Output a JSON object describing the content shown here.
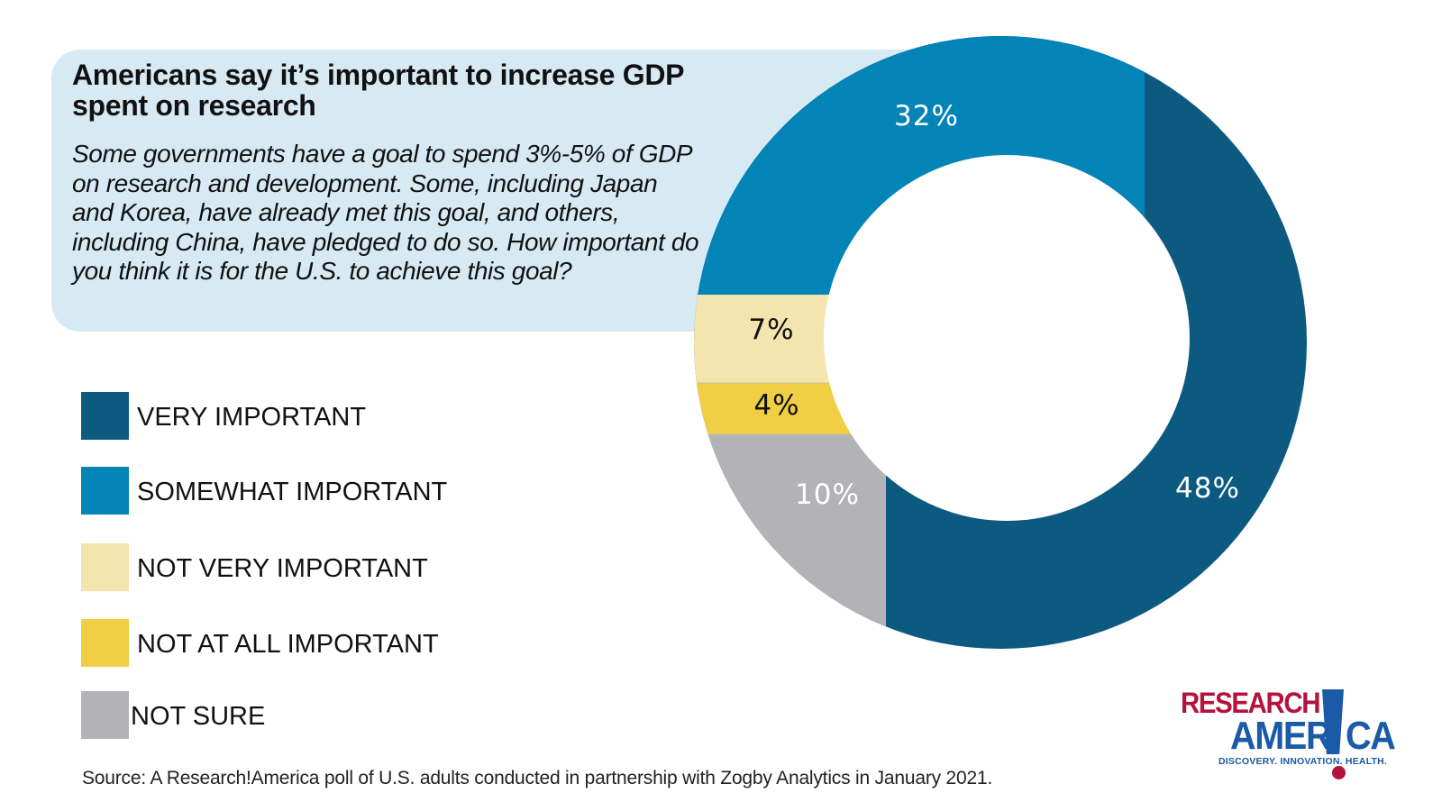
{
  "header": {
    "title": "Americans say it’s important to increase GDP spent on research",
    "question": "Some governments have a goal to spend 3%-5% of GDP on research and development. Some, including Japan and Korea, have already met this goal, and others, including China, have pledged to do so. How important do you think it is for the U.S. to achieve this goal?"
  },
  "chart_data": {
    "type": "pie",
    "variant": "donut",
    "title": "Americans say it’s important to increase GDP spent on research",
    "categories": [
      "VERY IMPORTANT",
      "SOMEWHAT IMPORTANT",
      "NOT VERY IMPORTANT",
      "NOT AT ALL IMPORTANT",
      "NOT SURE"
    ],
    "values": [
      48,
      32,
      7,
      4,
      10
    ],
    "unit": "%",
    "data_labels": [
      "48%",
      "32%",
      "7%",
      "4%",
      "10%"
    ],
    "colors": [
      "#0d5a81",
      "#0384b7",
      "#f4e4ad",
      "#f0cf45",
      "#b3b3b7"
    ],
    "label_colors": [
      "#ffffff",
      "#ffffff",
      "#111111",
      "#111111",
      "#ffffff"
    ],
    "legend_position": "left"
  },
  "legend": [
    {
      "label": "VERY IMPORTANT",
      "color": "#0d5a81"
    },
    {
      "label": "SOMEWHAT IMPORTANT",
      "color": "#0384b7"
    },
    {
      "label": "NOT VERY IMPORTANT",
      "color": "#f4e4ad"
    },
    {
      "label": "NOT AT ALL IMPORTANT",
      "color": "#f0cf45"
    },
    {
      "label": "NOT SURE",
      "color": "#b3b3b7"
    }
  ],
  "source": "Source:  A Research!America poll of U.S. adults conducted in partnership with Zogby Analytics in January 2021.",
  "logo": {
    "line1": "RESEARCH",
    "line2a": "AMER",
    "line2b": "CA",
    "tagline": "DISCOVERY. INNOVATION. HEALTH.",
    "red": "#b5123e",
    "blue": "#1a5aa6"
  },
  "theme": {
    "question_box_bg": "#d7eaf4"
  }
}
